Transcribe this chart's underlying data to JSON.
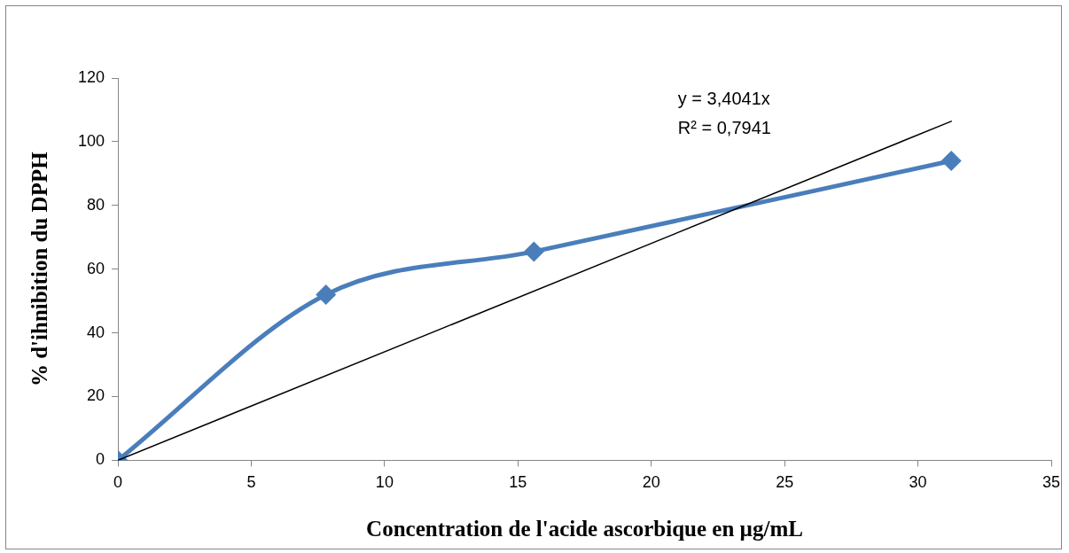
{
  "chart_data": {
    "type": "line",
    "xlabel": "Concentration de l'acide ascorbique en µg/mL",
    "ylabel": "% d'ihnibition du DPPH",
    "xlim": [
      0,
      35
    ],
    "xticks": [
      0,
      5,
      10,
      15,
      20,
      25,
      30,
      35
    ],
    "ylim": [
      0,
      120
    ],
    "yticks": [
      0,
      20,
      40,
      60,
      80,
      100,
      120
    ],
    "grid": false,
    "legend": false,
    "marker": "diamond",
    "line_style": "solid",
    "series": [
      {
        "color": "#4a7ebb",
        "x": [
          0,
          7.8,
          15.6,
          31.25
        ],
        "values": [
          0,
          52,
          65.5,
          94
        ]
      },
      {
        "color": "#000000",
        "x": [
          0,
          31.25
        ],
        "values": [
          0,
          106.4
        ],
        "marker": "none"
      }
    ],
    "annotations": [
      "y = 3,4041x",
      "R² = 0,7941"
    ]
  }
}
